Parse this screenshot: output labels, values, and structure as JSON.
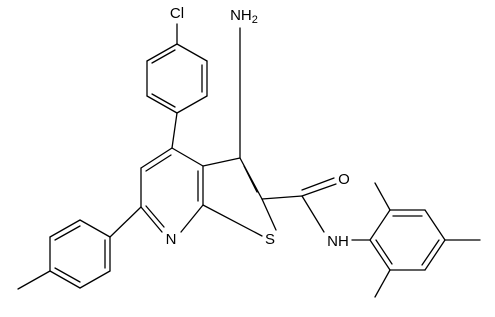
{
  "atoms": [
    {
      "text": "Cl"
    },
    {
      "text": "NH",
      "subscript": "2"
    },
    {
      "text": "O"
    },
    {
      "text": "NH"
    },
    {
      "text": "N"
    },
    {
      "text": "S"
    }
  ]
}
